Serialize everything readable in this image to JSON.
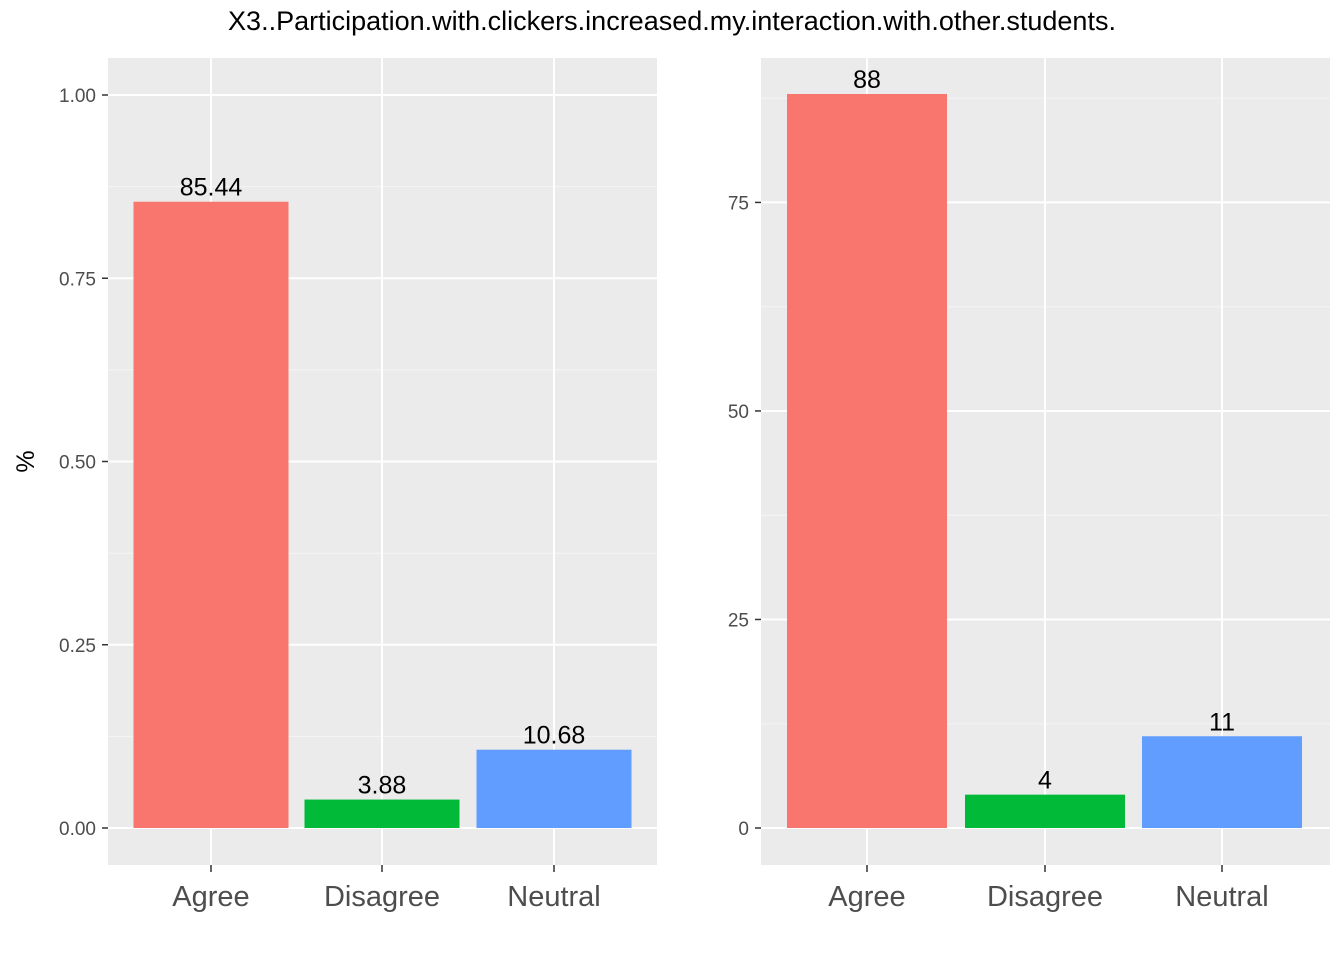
{
  "title": "X3..Participation.with.clickers.increased.my.interaction.with.other.students.",
  "colors": {
    "panel_background": "#ebebeb",
    "grid_major": "#ffffff",
    "grid_minor": "#f5f5f5",
    "tick_text": "#4d4d4d",
    "axis_tick": "#333333",
    "Agree": "#f8766d",
    "Disagree": "#00ba38",
    "Neutral": "#619cff"
  },
  "chart_data": [
    {
      "type": "bar",
      "title": "",
      "xlabel": "",
      "ylabel": "%",
      "categories": [
        "Agree",
        "Disagree",
        "Neutral"
      ],
      "values": [
        0.8544,
        0.0388,
        0.1068
      ],
      "data_labels": [
        "85.44",
        "3.88",
        "10.68"
      ],
      "ylim": [
        0,
        1.04
      ],
      "yticks": [
        0,
        0.25,
        0.5,
        0.75,
        1.0
      ],
      "ytick_labels": [
        "0.00",
        "0.25",
        "0.50",
        "0.75",
        "1.00"
      ],
      "grid": true,
      "legend": "none"
    },
    {
      "type": "bar",
      "title": "",
      "xlabel": "",
      "ylabel": "",
      "categories": [
        "Agree",
        "Disagree",
        "Neutral"
      ],
      "values": [
        88,
        4,
        11
      ],
      "data_labels": [
        "88",
        "4",
        "11"
      ],
      "ylim": [
        0,
        88
      ],
      "yticks": [
        0,
        25,
        50,
        75
      ],
      "ytick_labels": [
        "0",
        "25",
        "50",
        "75"
      ],
      "grid": true,
      "legend": "none"
    }
  ]
}
